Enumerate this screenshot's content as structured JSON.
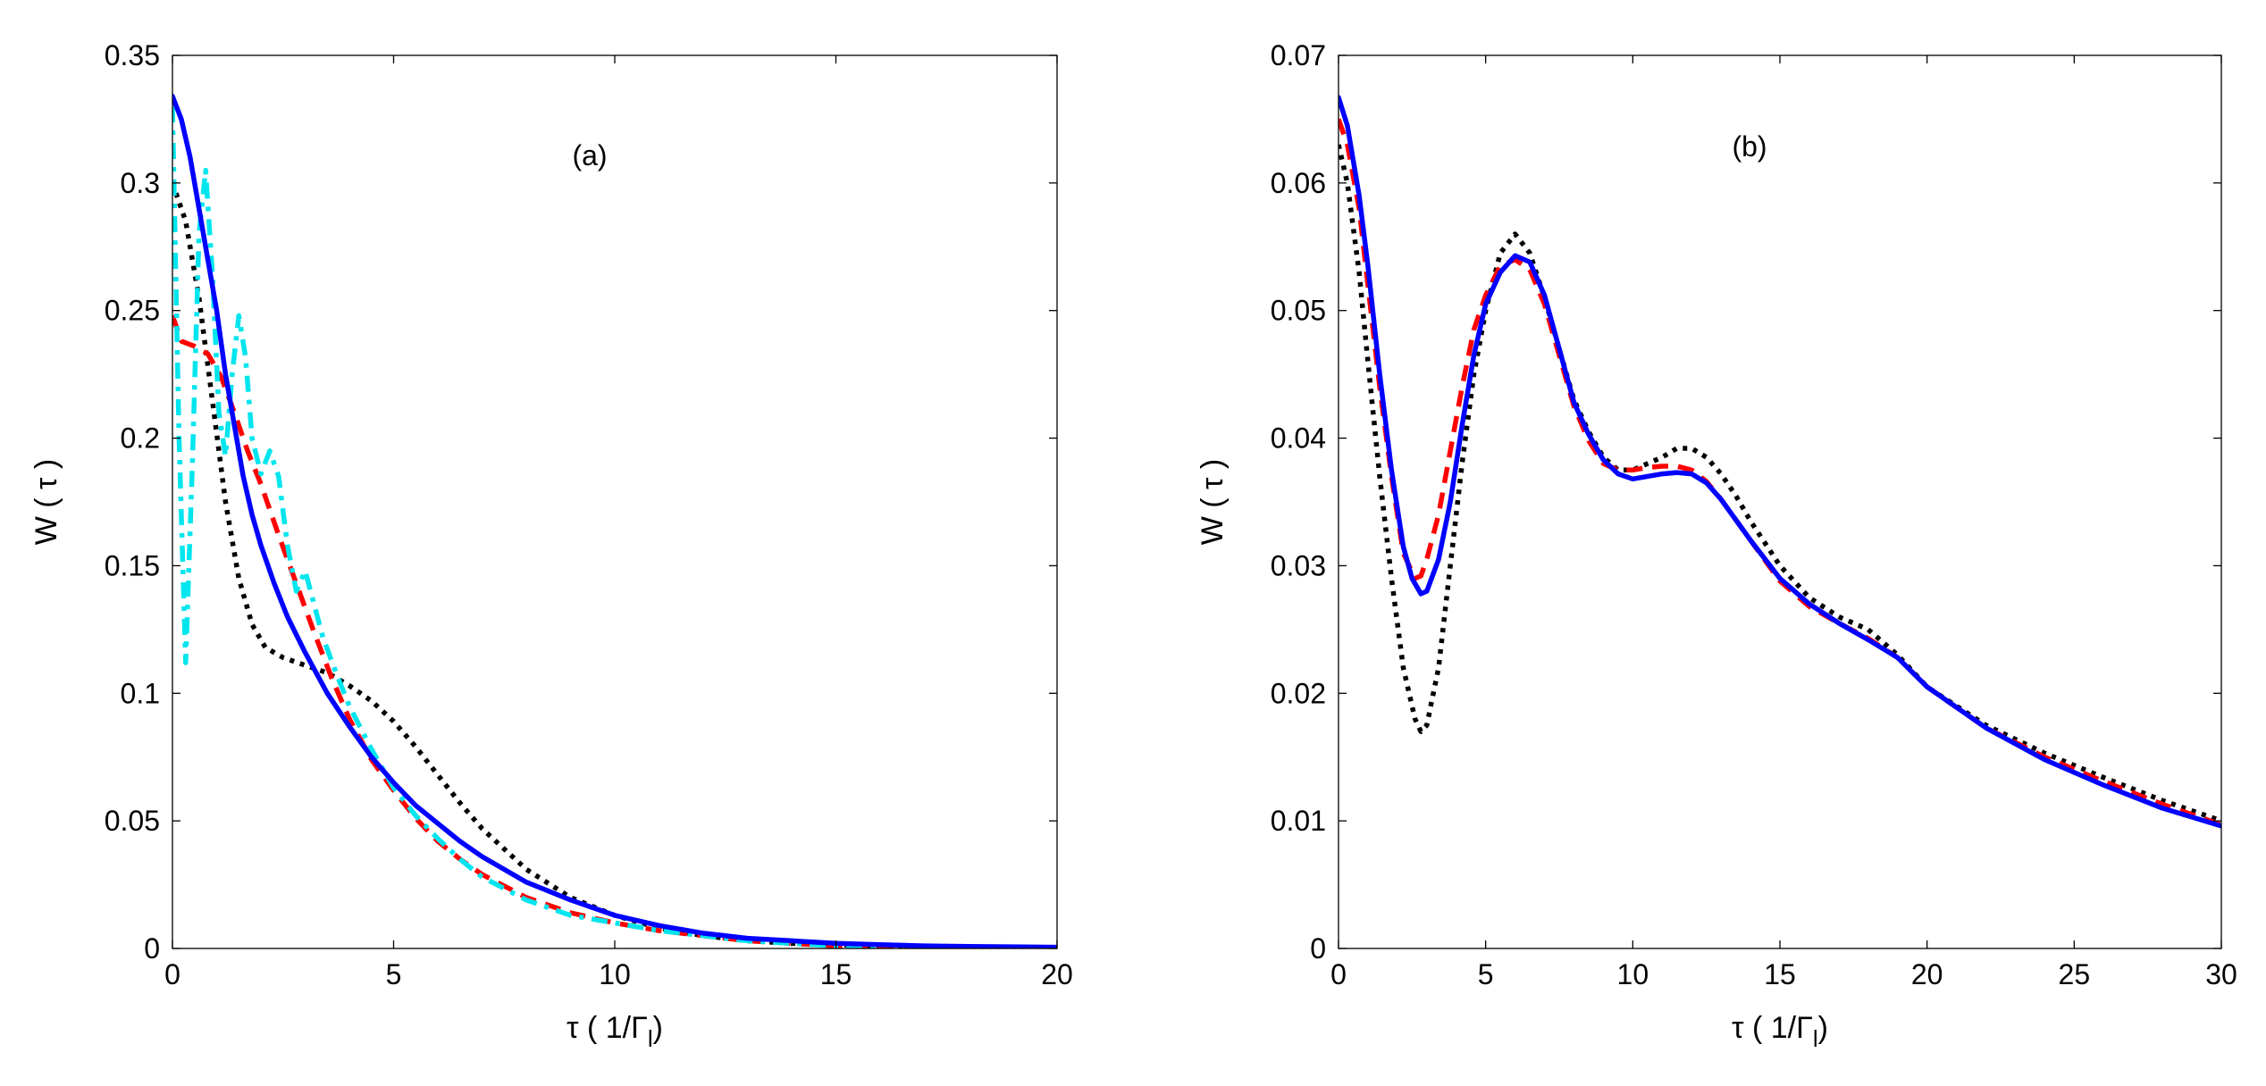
{
  "chart_data": [
    {
      "type": "line",
      "panel_label": "(a)",
      "xlabel": "τ ( 1/Γ",
      "xlabel_sub": "l",
      "xlabel_close": ")",
      "ylabel": "W ( τ )",
      "xlim": [
        0,
        20
      ],
      "ylim": [
        0,
        0.35
      ],
      "xticks": [
        0,
        5,
        10,
        15,
        20
      ],
      "xtick_labels": [
        "0",
        "5",
        "10",
        "15",
        "20"
      ],
      "yticks": [
        0,
        0.05,
        0.1,
        0.15,
        0.2,
        0.25,
        0.3,
        0.35
      ],
      "ytick_labels": [
        "0",
        "0.05",
        "0.1",
        "0.15",
        "0.2",
        "0.25",
        "0.3",
        "0.35"
      ],
      "grid": false,
      "series": [
        {
          "name": "dotted",
          "color": "#000000",
          "style": "dotted",
          "x": [
            0,
            0.3,
            0.6,
            0.9,
            1.2,
            1.5,
            1.8,
            2.1,
            2.5,
            3,
            3.5,
            4,
            4.5,
            5,
            5.5,
            6,
            6.5,
            7,
            8,
            9,
            10,
            11,
            12,
            13,
            14,
            16,
            18,
            20
          ],
          "y": [
            0.3,
            0.285,
            0.255,
            0.215,
            0.175,
            0.145,
            0.127,
            0.118,
            0.114,
            0.111,
            0.108,
            0.103,
            0.097,
            0.089,
            0.079,
            0.068,
            0.057,
            0.047,
            0.031,
            0.02,
            0.013,
            0.008,
            0.005,
            0.003,
            0.002,
            0.001,
            0.0005,
            0.0003
          ]
        },
        {
          "name": "dashed",
          "color": "#ff0000",
          "style": "dashed",
          "x": [
            0,
            0.2,
            0.5,
            0.8,
            1.1,
            1.4,
            1.7,
            2.0,
            2.4,
            2.8,
            3.2,
            3.6,
            4,
            4.5,
            5,
            5.5,
            6,
            6.5,
            7,
            8,
            9,
            10,
            11,
            12,
            13,
            14,
            15,
            16,
            18,
            20
          ],
          "y": [
            0.248,
            0.238,
            0.236,
            0.233,
            0.224,
            0.21,
            0.195,
            0.182,
            0.162,
            0.143,
            0.124,
            0.106,
            0.09,
            0.074,
            0.062,
            0.051,
            0.042,
            0.035,
            0.029,
            0.02,
            0.014,
            0.01,
            0.007,
            0.005,
            0.003,
            0.002,
            0.001,
            0.0008,
            0.0005,
            0.0003
          ]
        },
        {
          "name": "dash-dot",
          "color": "#00e5ee",
          "style": "dashdot",
          "x": [
            0,
            0.15,
            0.3,
            0.45,
            0.6,
            0.75,
            0.9,
            1.05,
            1.2,
            1.35,
            1.5,
            1.65,
            1.8,
            2.0,
            2.2,
            2.4,
            2.6,
            2.8,
            3.0,
            3.2,
            3.4,
            3.7,
            4.0,
            4.5,
            5,
            5.5,
            6,
            6.5,
            7,
            8,
            9,
            10,
            11,
            12,
            13,
            14,
            15,
            16
          ],
          "y": [
            0.33,
            0.2,
            0.112,
            0.19,
            0.28,
            0.305,
            0.265,
            0.21,
            0.193,
            0.225,
            0.248,
            0.232,
            0.2,
            0.186,
            0.195,
            0.185,
            0.158,
            0.14,
            0.148,
            0.135,
            0.122,
            0.108,
            0.095,
            0.078,
            0.063,
            0.052,
            0.043,
            0.035,
            0.028,
            0.019,
            0.013,
            0.01,
            0.007,
            0.005,
            0.003,
            0.002,
            0.001,
            0.0008
          ]
        },
        {
          "name": "solid",
          "color": "#0000ff",
          "style": "solid",
          "x": [
            0,
            0.2,
            0.4,
            0.6,
            0.8,
            1.0,
            1.2,
            1.4,
            1.6,
            1.8,
            2.0,
            2.3,
            2.6,
            3.0,
            3.5,
            4,
            4.5,
            5,
            5.5,
            6,
            6.5,
            7,
            8,
            9,
            10,
            11,
            12,
            13,
            14,
            15,
            16,
            17,
            18,
            20
          ],
          "y": [
            0.334,
            0.325,
            0.31,
            0.29,
            0.27,
            0.25,
            0.225,
            0.205,
            0.185,
            0.17,
            0.158,
            0.143,
            0.13,
            0.116,
            0.1,
            0.087,
            0.075,
            0.065,
            0.056,
            0.049,
            0.042,
            0.036,
            0.026,
            0.019,
            0.013,
            0.009,
            0.006,
            0.004,
            0.003,
            0.002,
            0.0015,
            0.001,
            0.0008,
            0.0005
          ]
        }
      ]
    },
    {
      "type": "line",
      "panel_label": "(b)",
      "xlabel": "τ ( 1/Γ",
      "xlabel_sub": "l",
      "xlabel_close": ")",
      "ylabel": "W ( τ )",
      "xlim": [
        0,
        30
      ],
      "ylim": [
        0,
        0.07
      ],
      "xticks": [
        0,
        5,
        10,
        15,
        20,
        25,
        30
      ],
      "xtick_labels": [
        "0",
        "5",
        "10",
        "15",
        "20",
        "25",
        "30"
      ],
      "yticks": [
        0,
        0.01,
        0.02,
        0.03,
        0.04,
        0.05,
        0.06,
        0.07
      ],
      "ytick_labels": [
        "0",
        "0.01",
        "0.02",
        "0.03",
        "0.04",
        "0.05",
        "0.06",
        "0.07"
      ],
      "grid": false,
      "series": [
        {
          "name": "dotted",
          "color": "#000000",
          "style": "dotted",
          "x": [
            0,
            0.3,
            0.7,
            1.0,
            1.4,
            1.8,
            2.2,
            2.6,
            2.8,
            3.0,
            3.4,
            3.8,
            4.2,
            4.6,
            5.0,
            5.5,
            6.0,
            6.5,
            7.0,
            7.5,
            8.0,
            8.5,
            9,
            9.5,
            10,
            10.5,
            11,
            11.5,
            12,
            12.5,
            13,
            13.5,
            14,
            15,
            16,
            17,
            18,
            19,
            20,
            22,
            24,
            26,
            28,
            30
          ],
          "y": [
            0.063,
            0.06,
            0.053,
            0.046,
            0.037,
            0.029,
            0.022,
            0.018,
            0.017,
            0.0175,
            0.022,
            0.03,
            0.038,
            0.045,
            0.05,
            0.0545,
            0.056,
            0.0545,
            0.051,
            0.047,
            0.043,
            0.0405,
            0.0385,
            0.0375,
            0.0375,
            0.038,
            0.0385,
            0.0392,
            0.0392,
            0.0385,
            0.0372,
            0.0355,
            0.0335,
            0.03,
            0.0275,
            0.026,
            0.025,
            0.023,
            0.0205,
            0.0175,
            0.0153,
            0.0134,
            0.0116,
            0.01
          ]
        },
        {
          "name": "dashed",
          "color": "#ff0000",
          "style": "dashed",
          "x": [
            0,
            0.3,
            0.7,
            1.0,
            1.4,
            1.8,
            2.2,
            2.6,
            2.8,
            3.0,
            3.4,
            3.8,
            4.2,
            4.6,
            5.0,
            5.5,
            6.0,
            6.5,
            7.0,
            7.5,
            8.0,
            8.5,
            9,
            9.5,
            10,
            10.5,
            11,
            11.5,
            12,
            12.5,
            13,
            13.5,
            14,
            15,
            16,
            17,
            18,
            19,
            20,
            22,
            24,
            26,
            28,
            30
          ],
          "y": [
            0.065,
            0.063,
            0.058,
            0.052,
            0.044,
            0.037,
            0.031,
            0.029,
            0.0292,
            0.0305,
            0.034,
            0.039,
            0.044,
            0.0485,
            0.0512,
            0.0535,
            0.054,
            0.0532,
            0.0505,
            0.0465,
            0.0425,
            0.0398,
            0.038,
            0.0375,
            0.0375,
            0.0377,
            0.0378,
            0.0378,
            0.0375,
            0.0366,
            0.0352,
            0.0336,
            0.032,
            0.0288,
            0.0268,
            0.0255,
            0.0243,
            0.0228,
            0.0205,
            0.0173,
            0.015,
            0.0131,
            0.0113,
            0.0097
          ]
        },
        {
          "name": "solid",
          "color": "#0000ff",
          "style": "solid",
          "x": [
            0,
            0.3,
            0.7,
            1.0,
            1.4,
            1.8,
            2.2,
            2.5,
            2.8,
            3.0,
            3.4,
            3.8,
            4.2,
            4.6,
            5.0,
            5.5,
            6.0,
            6.5,
            7.0,
            7.5,
            8.0,
            8.5,
            9,
            9.5,
            10,
            10.5,
            11,
            11.5,
            12,
            12.5,
            13,
            13.5,
            14,
            15,
            16,
            17,
            18,
            19,
            20,
            22,
            24,
            26,
            28,
            30
          ],
          "y": [
            0.0667,
            0.0645,
            0.059,
            0.0535,
            0.045,
            0.0375,
            0.0315,
            0.029,
            0.0278,
            0.028,
            0.0305,
            0.035,
            0.041,
            0.0465,
            0.0505,
            0.053,
            0.0543,
            0.0538,
            0.0512,
            0.047,
            0.0428,
            0.0403,
            0.0383,
            0.0372,
            0.0368,
            0.037,
            0.0372,
            0.0373,
            0.0372,
            0.0365,
            0.0352,
            0.0336,
            0.032,
            0.029,
            0.027,
            0.0255,
            0.0242,
            0.0228,
            0.0205,
            0.0173,
            0.0148,
            0.0128,
            0.011,
            0.0096
          ]
        }
      ]
    }
  ]
}
